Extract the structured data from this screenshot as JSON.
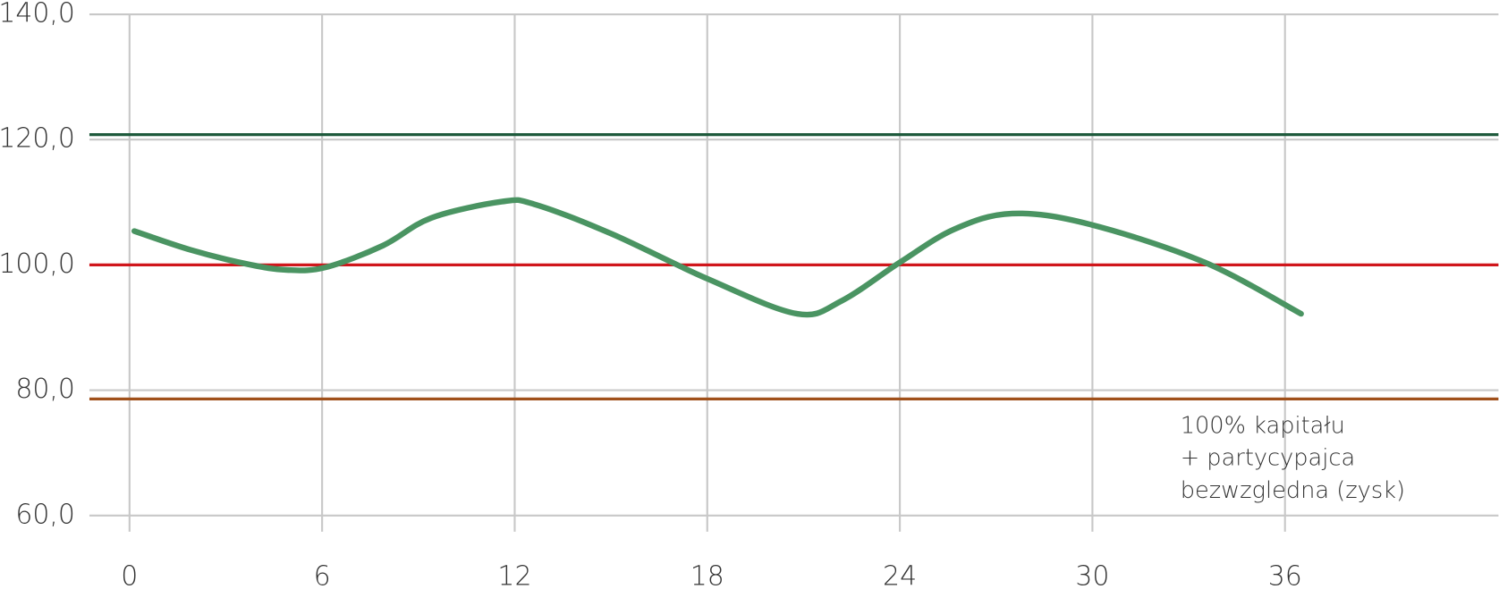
{
  "chart_data": {
    "type": "line",
    "x": [
      0.15,
      1.9,
      3.7,
      4.9,
      6.1,
      7.9,
      9.4,
      11.6,
      12.6,
      15.0,
      18.0,
      20.8,
      22.2,
      24.0,
      25.7,
      27.5,
      29.9,
      33.5,
      36.5
    ],
    "series": [
      {
        "color": "#4a9462",
        "values": [
          105.4,
          102.4,
          100.1,
          99.2,
          99.6,
          103.1,
          107.5,
          110.1,
          109.7,
          105.0,
          97.8,
          92.2,
          94.3,
          100.4,
          105.7,
          108.2,
          106.5,
          100.4,
          92.2
        ]
      }
    ],
    "reference_lines": [
      {
        "value": 120.8,
        "color": "#1e5a3c"
      },
      {
        "value": 100,
        "color": "#d0161b"
      },
      {
        "value": 78.6,
        "color": "#a0501a"
      }
    ],
    "xlim": [
      -1.25,
      42.65
    ],
    "ylim": [
      60,
      140
    ],
    "xticks": [
      0,
      6,
      12,
      18,
      24,
      30,
      36
    ],
    "yticks": [
      {
        "value": 60,
        "label": "60,0"
      },
      {
        "value": 80,
        "label": "80,0"
      },
      {
        "value": 100,
        "label": "100,0"
      },
      {
        "value": 120,
        "label": "120,0"
      },
      {
        "value": 140,
        "label": "140,0"
      }
    ],
    "grid": true,
    "annotation": [
      "100% kapitału",
      "+ partycypajca",
      "bezwzgledna (zysk)"
    ]
  }
}
